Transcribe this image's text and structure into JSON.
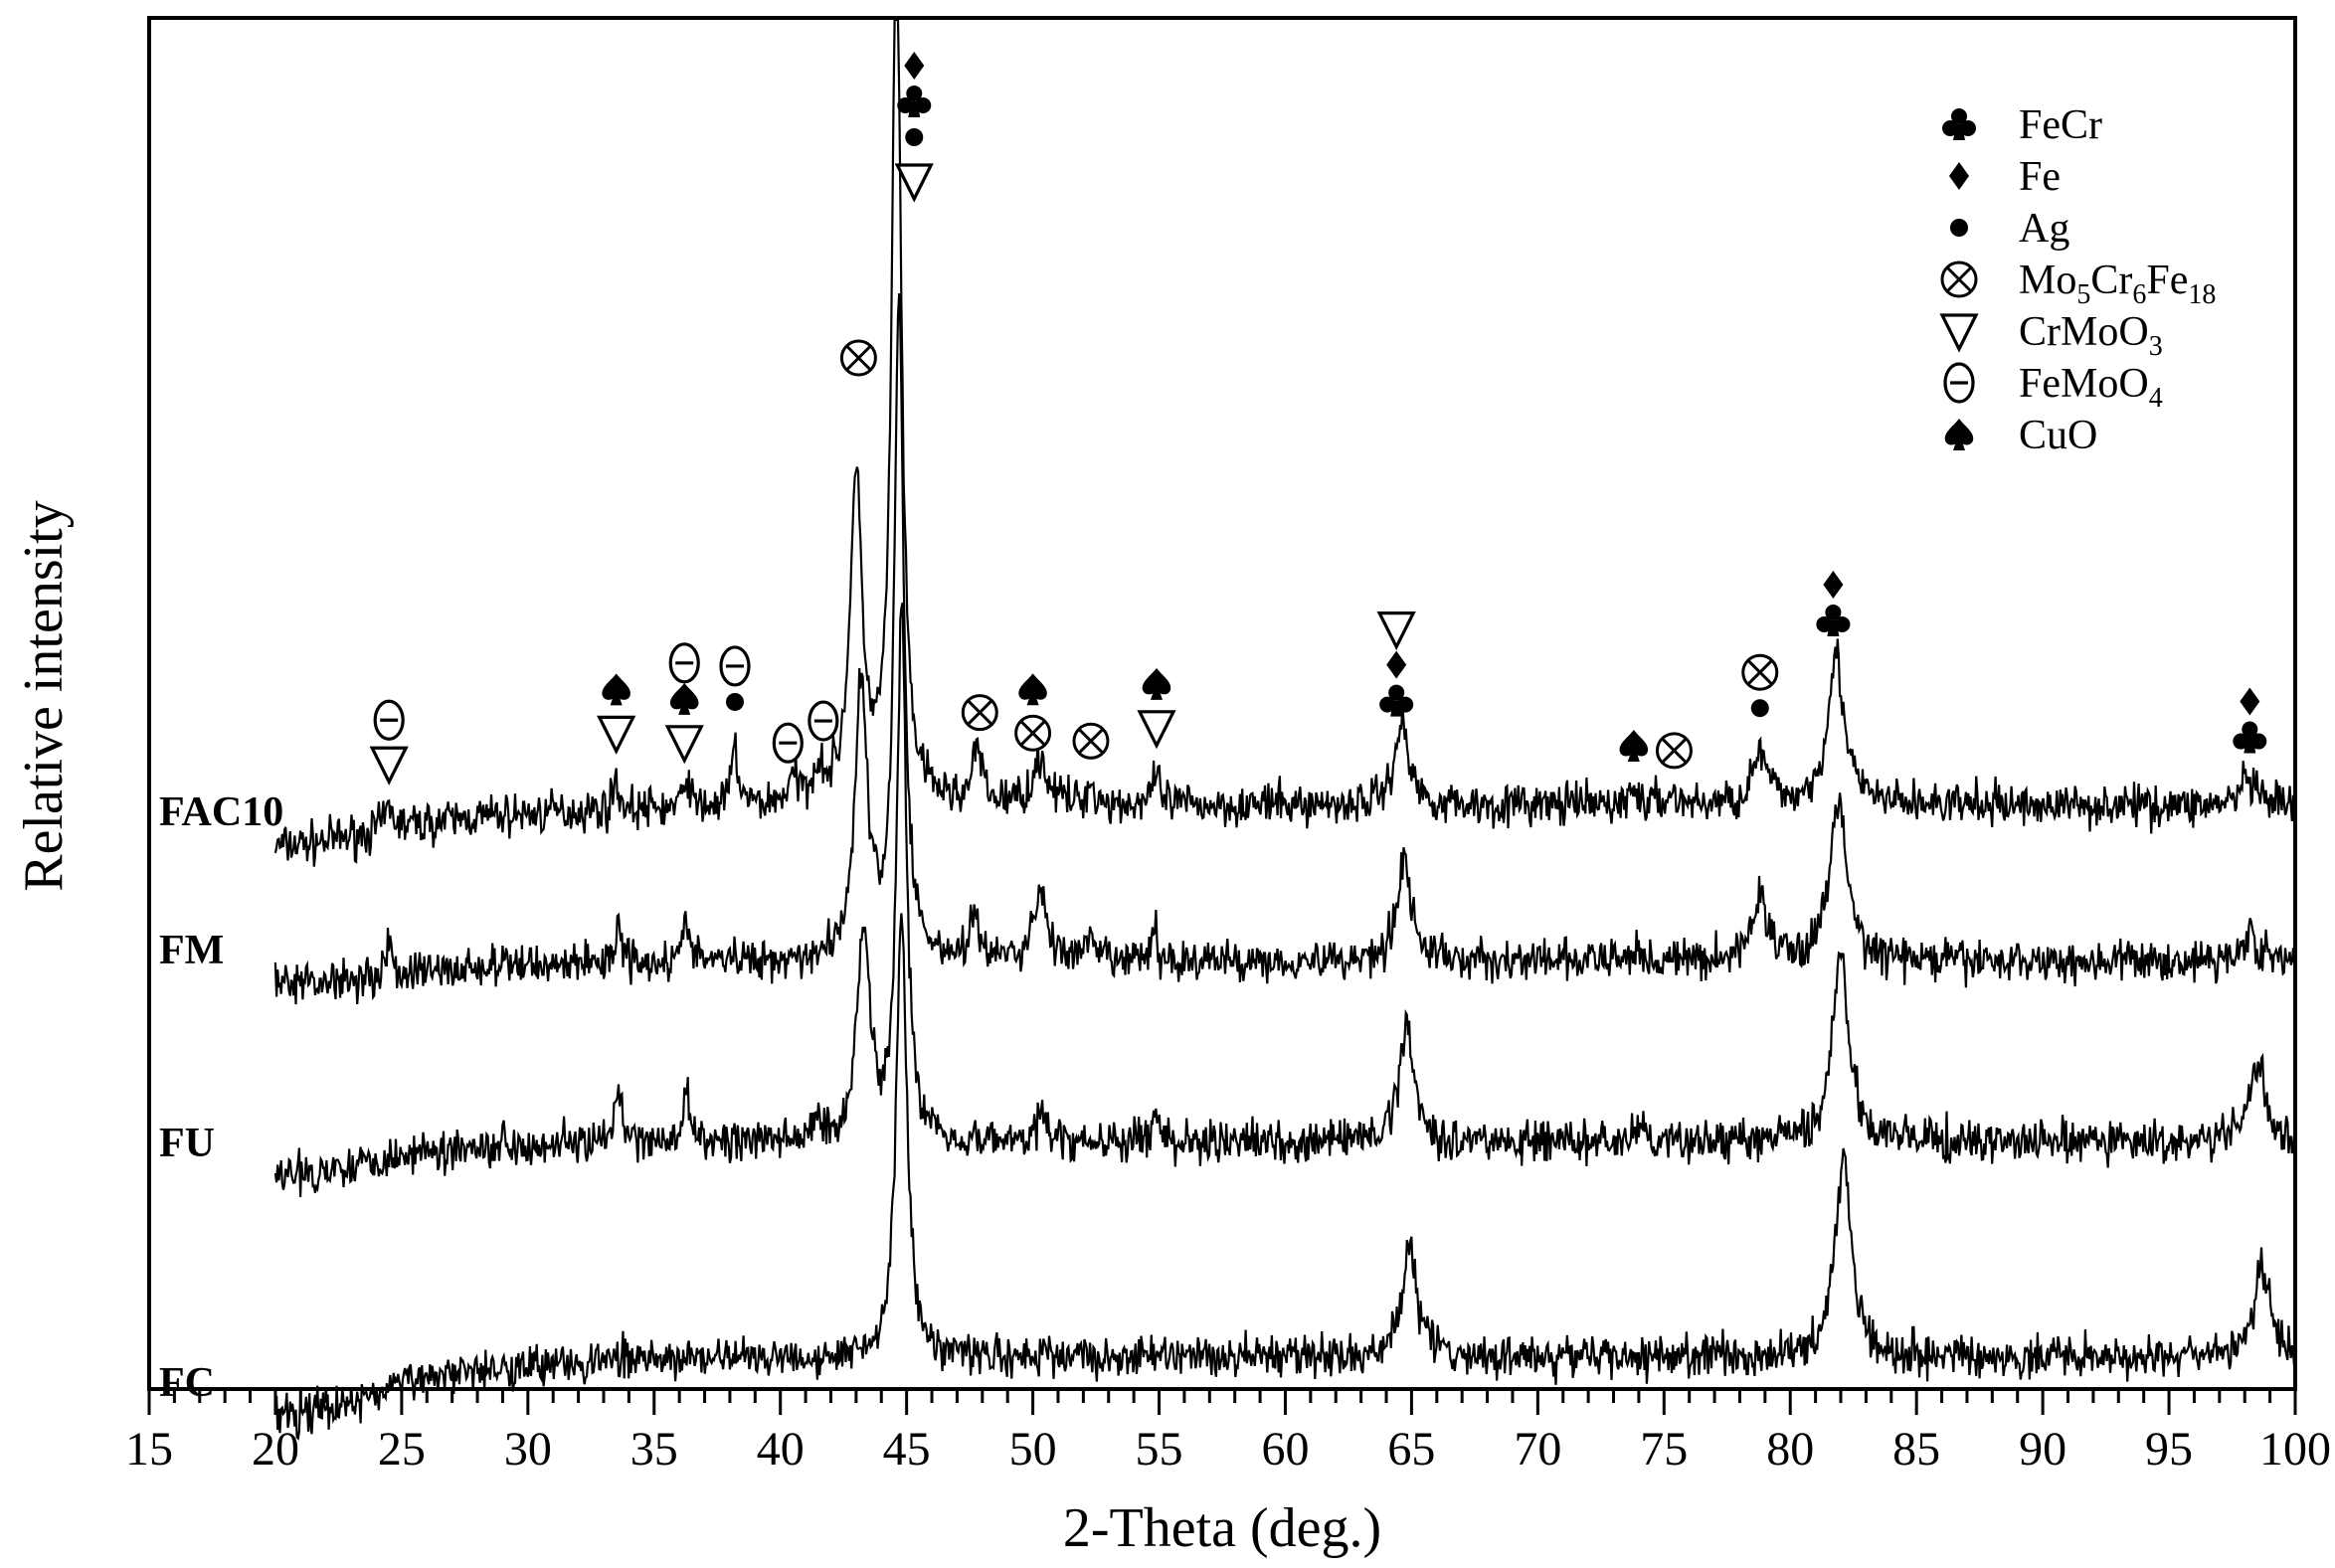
{
  "chart_data": {
    "type": "line",
    "title": "",
    "xlabel": "2-Theta (deg.)",
    "ylabel": "Relative intensity",
    "xlim": [
      15,
      100
    ],
    "xticks": [
      15,
      20,
      25,
      30,
      35,
      40,
      45,
      50,
      55,
      60,
      65,
      70,
      75,
      80,
      85,
      90,
      95,
      100
    ],
    "grid": false,
    "legend_position": "top-right",
    "legend": [
      {
        "marker": "club",
        "label": "FeCr"
      },
      {
        "marker": "diamond",
        "label": "Fe"
      },
      {
        "marker": "circle",
        "label": "Ag"
      },
      {
        "marker": "otimes",
        "label": "Mo5Cr6Fe18",
        "parts": [
          [
            "Mo",
            ""
          ],
          [
            "5",
            "sub"
          ],
          [
            "Cr",
            ""
          ],
          [
            "6",
            "sub"
          ],
          [
            "Fe",
            ""
          ],
          [
            "18",
            "sub"
          ]
        ]
      },
      {
        "marker": "nabla",
        "label": "CrMoO3",
        "parts": [
          [
            "CrMoO",
            ""
          ],
          [
            "3",
            "sub"
          ]
        ]
      },
      {
        "marker": "theta",
        "label": "FeMoO4",
        "parts": [
          [
            "FeMoO",
            ""
          ],
          [
            "4",
            "sub"
          ]
        ]
      },
      {
        "marker": "spade",
        "label": "CuO"
      }
    ],
    "series": [
      {
        "name": "FAC10",
        "baseline": [
          [
            20,
            0.8
          ],
          [
            22,
            0.9
          ],
          [
            25,
            1.15
          ],
          [
            28,
            1.3
          ],
          [
            32,
            1.4
          ],
          [
            38,
            1.45
          ],
          [
            45,
            1.5
          ],
          [
            100,
            1.5
          ]
        ],
        "peaks": [
          [
            24.5,
            0.35,
            0.18
          ],
          [
            33.5,
            0.55,
            0.12
          ],
          [
            36.3,
            0.6,
            0.12
          ],
          [
            38.2,
            1.0,
            0.15
          ],
          [
            40.5,
            0.35,
            0.25
          ],
          [
            41.5,
            0.55,
            0.25
          ],
          [
            43.0,
            5.3,
            0.3
          ],
          [
            44.6,
            14.5,
            0.22
          ],
          [
            47.8,
            0.9,
            0.2
          ],
          [
            50.3,
            0.75,
            0.35
          ],
          [
            52.3,
            0.3,
            0.2
          ],
          [
            54.9,
            0.55,
            0.12
          ],
          [
            64.6,
            1.35,
            0.35
          ],
          [
            73.8,
            0.25,
            0.2
          ],
          [
            75.3,
            0.2,
            0.2
          ],
          [
            78.8,
            0.85,
            0.35
          ],
          [
            81.8,
            2.5,
            0.4
          ],
          [
            98.1,
            0.45,
            0.3
          ]
        ]
      },
      {
        "name": "FM",
        "baseline": [
          [
            20,
            0.4
          ],
          [
            25,
            0.6
          ],
          [
            30,
            0.75
          ],
          [
            35,
            0.8
          ],
          [
            45,
            0.8
          ],
          [
            100,
            0.8
          ]
        ],
        "peaks": [
          [
            24.5,
            0.55,
            0.12
          ],
          [
            33.6,
            0.8,
            0.12
          ],
          [
            36.3,
            0.8,
            0.12
          ],
          [
            43.2,
            4.6,
            0.3
          ],
          [
            44.7,
            11.0,
            0.22
          ],
          [
            47.7,
            0.75,
            0.2
          ],
          [
            50.3,
            1.2,
            0.3
          ],
          [
            52.3,
            0.3,
            0.2
          ],
          [
            54.8,
            0.55,
            0.12
          ],
          [
            64.7,
            1.7,
            0.35
          ],
          [
            73.9,
            0.2,
            0.2
          ],
          [
            78.8,
            1.1,
            0.35
          ],
          [
            81.9,
            2.7,
            0.4
          ],
          [
            98.2,
            0.55,
            0.3
          ]
        ]
      },
      {
        "name": "FU",
        "baseline": [
          [
            20,
            -0.5
          ],
          [
            22,
            -0.35
          ],
          [
            25,
            -0.1
          ],
          [
            28,
            0.05
          ],
          [
            32,
            0.1
          ],
          [
            38,
            0.1
          ],
          [
            45,
            0.1
          ],
          [
            100,
            0.1
          ]
        ],
        "peaks": [
          [
            33.6,
            0.9,
            0.12
          ],
          [
            36.3,
            0.9,
            0.12
          ],
          [
            41.5,
            0.3,
            0.2
          ],
          [
            43.3,
            3.6,
            0.3
          ],
          [
            44.8,
            9.0,
            0.22
          ],
          [
            50.3,
            0.5,
            0.2
          ],
          [
            54.9,
            0.6,
            0.12
          ],
          [
            64.8,
            2.0,
            0.35
          ],
          [
            74.0,
            0.2,
            0.2
          ],
          [
            82.0,
            3.1,
            0.4
          ],
          [
            98.5,
            1.4,
            0.35
          ]
        ]
      },
      {
        "name": "FC",
        "baseline": [
          [
            20,
            -1.6
          ],
          [
            22,
            -1.45
          ],
          [
            24,
            -1.2
          ],
          [
            26,
            -0.9
          ],
          [
            28,
            -0.75
          ],
          [
            32,
            -0.65
          ],
          [
            38,
            -0.6
          ],
          [
            45,
            -0.58
          ],
          [
            100,
            -0.58
          ]
        ],
        "peaks": [
          [
            44.8,
            7.5,
            0.25
          ],
          [
            64.9,
            1.9,
            0.35
          ],
          [
            82.1,
            3.3,
            0.4
          ],
          [
            98.7,
            1.5,
            0.35
          ]
        ]
      }
    ],
    "annotations": [
      {
        "x": 24.5,
        "markers": [
          "nabla",
          "theta"
        ]
      },
      {
        "x": 33.5,
        "markers": [
          "nabla",
          "spade"
        ]
      },
      {
        "x": 36.2,
        "markers": [
          "nabla",
          "spade",
          "theta"
        ]
      },
      {
        "x": 38.2,
        "markers": [
          "circle",
          "theta"
        ]
      },
      {
        "x": 40.3,
        "markers": [
          "theta"
        ]
      },
      {
        "x": 41.7,
        "markers": [
          "theta"
        ]
      },
      {
        "x": 43.1,
        "markers": [
          "otimes"
        ]
      },
      {
        "x": 45.3,
        "markers": [
          "nabla",
          "circle",
          "club",
          "diamond"
        ]
      },
      {
        "x": 47.9,
        "markers": [
          "otimes"
        ]
      },
      {
        "x": 50.0,
        "markers": [
          "otimes",
          "spade"
        ]
      },
      {
        "x": 52.3,
        "markers": [
          "otimes"
        ]
      },
      {
        "x": 54.9,
        "markers": [
          "nabla",
          "spade"
        ]
      },
      {
        "x": 64.4,
        "markers": [
          "club",
          "diamond",
          "nabla"
        ]
      },
      {
        "x": 73.8,
        "markers": [
          "spade"
        ]
      },
      {
        "x": 75.4,
        "markers": [
          "otimes"
        ]
      },
      {
        "x": 78.8,
        "markers": [
          "circle",
          "otimes"
        ]
      },
      {
        "x": 81.7,
        "markers": [
          "club",
          "diamond"
        ]
      },
      {
        "x": 98.2,
        "markers": [
          "club",
          "diamond"
        ]
      }
    ]
  }
}
